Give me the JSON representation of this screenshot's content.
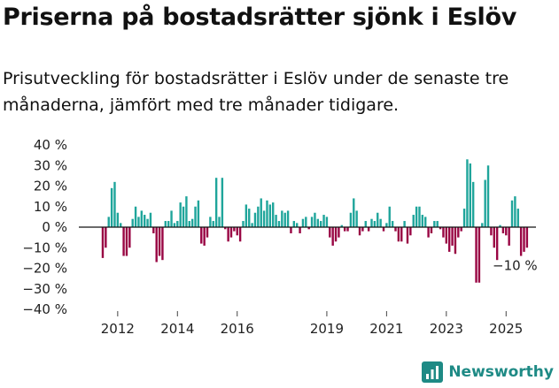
{
  "title": "Priserna på bostadsrätter sjönk i Eslöv",
  "subtitle": "Prisutveckling för bostadsrätter i Eslöv under de senaste tre månaderna, jämfört med tre månader tidigare.",
  "brand": {
    "name": "Newsworthy",
    "logo_icon": "newsworthy-logo-icon"
  },
  "colors": {
    "positive": "#1fa59b",
    "negative": "#990543",
    "axis": "#111111",
    "grid": "#ffffff"
  },
  "chart_data": {
    "type": "bar",
    "title": "",
    "xlabel": "",
    "ylabel": "",
    "y_unit": "%",
    "ylim": [
      -40,
      40
    ],
    "y_ticks": [
      40,
      30,
      20,
      10,
      0,
      -10,
      -20,
      -30,
      -40
    ],
    "y_tick_labels": [
      "40 %",
      "30 %",
      "20 %",
      "10 %",
      "0 %",
      "−10 %",
      "−20 %",
      "−30 %",
      "−40 %"
    ],
    "x_ticks": [
      2012,
      2014,
      2016,
      2019,
      2021,
      2023,
      2025
    ],
    "x_tick_labels": [
      "2012",
      "2014",
      "2016",
      "2019",
      "2021",
      "2023",
      "2025"
    ],
    "xlim": [
      2011.2,
      2025.8
    ],
    "grid": false,
    "legend": "none",
    "annotation": {
      "text": "−10 %"
    },
    "bars": [
      {
        "x": 2012.0,
        "y": -15
      },
      {
        "x": 2012.1,
        "y": -10
      },
      {
        "x": 2012.2,
        "y": 5
      },
      {
        "x": 2012.3,
        "y": 19
      },
      {
        "x": 2012.4,
        "y": 22
      },
      {
        "x": 2012.5,
        "y": 7
      },
      {
        "x": 2012.6,
        "y": 2
      },
      {
        "x": 2012.7,
        "y": -14
      },
      {
        "x": 2012.8,
        "y": -14
      },
      {
        "x": 2012.9,
        "y": -10
      },
      {
        "x": 2013.0,
        "y": 4
      },
      {
        "x": 2013.1,
        "y": 10
      },
      {
        "x": 2013.2,
        "y": 5
      },
      {
        "x": 2013.3,
        "y": 8
      },
      {
        "x": 2013.4,
        "y": 6
      },
      {
        "x": 2013.5,
        "y": 4
      },
      {
        "x": 2013.6,
        "y": 7
      },
      {
        "x": 2013.7,
        "y": -3
      },
      {
        "x": 2013.8,
        "y": -17
      },
      {
        "x": 2013.9,
        "y": -14
      },
      {
        "x": 2014.0,
        "y": -16
      },
      {
        "x": 2014.1,
        "y": 3
      },
      {
        "x": 2014.2,
        "y": 3
      },
      {
        "x": 2014.3,
        "y": 8
      },
      {
        "x": 2014.4,
        "y": 2
      },
      {
        "x": 2014.5,
        "y": 3
      },
      {
        "x": 2014.6,
        "y": 12
      },
      {
        "x": 2014.7,
        "y": 10
      },
      {
        "x": 2014.8,
        "y": 15
      },
      {
        "x": 2014.9,
        "y": 3
      },
      {
        "x": 2015.0,
        "y": 4
      },
      {
        "x": 2015.1,
        "y": 10
      },
      {
        "x": 2015.2,
        "y": 13
      },
      {
        "x": 2015.3,
        "y": -8
      },
      {
        "x": 2015.4,
        "y": -9
      },
      {
        "x": 2015.5,
        "y": -5
      },
      {
        "x": 2015.6,
        "y": 5
      },
      {
        "x": 2015.7,
        "y": 3
      },
      {
        "x": 2015.8,
        "y": 24
      },
      {
        "x": 2015.9,
        "y": 5
      },
      {
        "x": 2016.0,
        "y": 24
      },
      {
        "x": 2016.1,
        "y": -1
      },
      {
        "x": 2016.2,
        "y": -7
      },
      {
        "x": 2016.3,
        "y": -5
      },
      {
        "x": 2016.4,
        "y": -2
      },
      {
        "x": 2016.5,
        "y": -4
      },
      {
        "x": 2016.6,
        "y": -7
      },
      {
        "x": 2016.7,
        "y": 3
      },
      {
        "x": 2016.8,
        "y": 11
      },
      {
        "x": 2016.9,
        "y": 9
      },
      {
        "x": 2017.0,
        "y": 2
      },
      {
        "x": 2017.1,
        "y": 7
      },
      {
        "x": 2017.2,
        "y": 10
      },
      {
        "x": 2017.3,
        "y": 14
      },
      {
        "x": 2017.4,
        "y": 8
      },
      {
        "x": 2017.5,
        "y": 13
      },
      {
        "x": 2017.6,
        "y": 11
      },
      {
        "x": 2017.7,
        "y": 12
      },
      {
        "x": 2017.8,
        "y": 6
      },
      {
        "x": 2017.9,
        "y": 3
      },
      {
        "x": 2018.0,
        "y": 8
      },
      {
        "x": 2018.1,
        "y": 7
      },
      {
        "x": 2018.2,
        "y": 8
      },
      {
        "x": 2018.3,
        "y": -3
      },
      {
        "x": 2018.4,
        "y": 3
      },
      {
        "x": 2018.5,
        "y": 2
      },
      {
        "x": 2018.6,
        "y": -3
      },
      {
        "x": 2018.7,
        "y": 4
      },
      {
        "x": 2018.8,
        "y": 5
      },
      {
        "x": 2018.9,
        "y": -1
      },
      {
        "x": 2019.0,
        "y": 5
      },
      {
        "x": 2019.1,
        "y": 7
      },
      {
        "x": 2019.2,
        "y": 4
      },
      {
        "x": 2019.3,
        "y": 3
      },
      {
        "x": 2019.4,
        "y": 6
      },
      {
        "x": 2019.5,
        "y": 5
      },
      {
        "x": 2019.6,
        "y": -5
      },
      {
        "x": 2019.7,
        "y": -9
      },
      {
        "x": 2019.8,
        "y": -7
      },
      {
        "x": 2019.9,
        "y": -5
      },
      {
        "x": 2020.0,
        "y": 1
      },
      {
        "x": 2020.1,
        "y": -2
      },
      {
        "x": 2020.2,
        "y": -2
      },
      {
        "x": 2020.3,
        "y": 7
      },
      {
        "x": 2020.4,
        "y": 14
      },
      {
        "x": 2020.5,
        "y": 8
      },
      {
        "x": 2020.6,
        "y": -4
      },
      {
        "x": 2020.7,
        "y": -2
      },
      {
        "x": 2020.8,
        "y": 3
      },
      {
        "x": 2020.9,
        "y": -2
      },
      {
        "x": 2021.0,
        "y": 4
      },
      {
        "x": 2021.1,
        "y": 3
      },
      {
        "x": 2021.2,
        "y": 7
      },
      {
        "x": 2021.3,
        "y": 4
      },
      {
        "x": 2021.4,
        "y": -2
      },
      {
        "x": 2021.5,
        "y": 2
      },
      {
        "x": 2021.6,
        "y": 10
      },
      {
        "x": 2021.7,
        "y": 3
      },
      {
        "x": 2021.8,
        "y": -2
      },
      {
        "x": 2021.9,
        "y": -7
      },
      {
        "x": 2022.0,
        "y": -7
      },
      {
        "x": 2022.1,
        "y": 3
      },
      {
        "x": 2022.2,
        "y": -8
      },
      {
        "x": 2022.3,
        "y": -4
      },
      {
        "x": 2022.4,
        "y": 6
      },
      {
        "x": 2022.5,
        "y": 10
      },
      {
        "x": 2022.6,
        "y": 10
      },
      {
        "x": 2022.7,
        "y": 6
      },
      {
        "x": 2022.8,
        "y": 5
      },
      {
        "x": 2022.9,
        "y": -5
      },
      {
        "x": 2023.0,
        "y": -3
      },
      {
        "x": 2023.1,
        "y": 3
      },
      {
        "x": 2023.2,
        "y": 3
      },
      {
        "x": 2023.3,
        "y": -1
      },
      {
        "x": 2023.4,
        "y": -5
      },
      {
        "x": 2023.5,
        "y": -8
      },
      {
        "x": 2023.6,
        "y": -12
      },
      {
        "x": 2023.7,
        "y": -9
      },
      {
        "x": 2023.8,
        "y": -13
      },
      {
        "x": 2023.9,
        "y": -5
      },
      {
        "x": 2024.0,
        "y": -2
      },
      {
        "x": 2024.1,
        "y": 9
      },
      {
        "x": 2024.2,
        "y": 33
      },
      {
        "x": 2024.3,
        "y": 31
      },
      {
        "x": 2024.4,
        "y": 22
      },
      {
        "x": 2024.5,
        "y": -27
      },
      {
        "x": 2024.6,
        "y": -27
      },
      {
        "x": 2024.7,
        "y": 2
      },
      {
        "x": 2024.8,
        "y": 23
      },
      {
        "x": 2024.9,
        "y": 30
      },
      {
        "x": 2025.0,
        "y": -4
      },
      {
        "x": 2025.1,
        "y": -10
      },
      {
        "x": 2025.2,
        "y": -16
      },
      {
        "x": 2025.3,
        "y": 1
      },
      {
        "x": 2025.4,
        "y": -3
      },
      {
        "x": 2025.5,
        "y": -4
      },
      {
        "x": 2025.6,
        "y": -9
      },
      {
        "x": 2025.7,
        "y": 13
      },
      {
        "x": 2025.8,
        "y": 15
      },
      {
        "x": 2025.9,
        "y": 9
      },
      {
        "x": 2026.0,
        "y": -14
      },
      {
        "x": 2026.1,
        "y": -12
      },
      {
        "x": 2026.2,
        "y": -10
      }
    ]
  }
}
